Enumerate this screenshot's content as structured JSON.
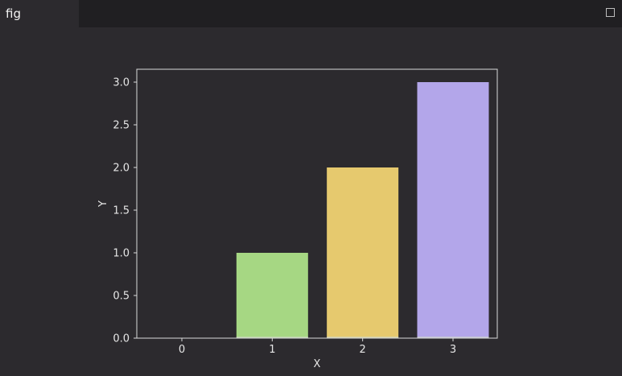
{
  "window": {
    "tab_title": "fig"
  },
  "colors": {
    "background": "#2c2a2e",
    "plot_background": "#2c2a2e",
    "axes": "#d9d9d9",
    "text": "#e6e6e6"
  },
  "chart_data": {
    "type": "bar",
    "categories": [
      "0",
      "1",
      "2",
      "3"
    ],
    "values": [
      0,
      1,
      2,
      3
    ],
    "bar_colors": [
      "#a6d783",
      "#a6d783",
      "#e6c96e",
      "#b3a6ea"
    ],
    "xlabel": "X",
    "ylabel": "Y",
    "ylim": [
      0,
      3.0
    ],
    "yticks": [
      "0.0",
      "0.5",
      "1.0",
      "1.5",
      "2.0",
      "2.5",
      "3.0"
    ],
    "grid": false
  }
}
